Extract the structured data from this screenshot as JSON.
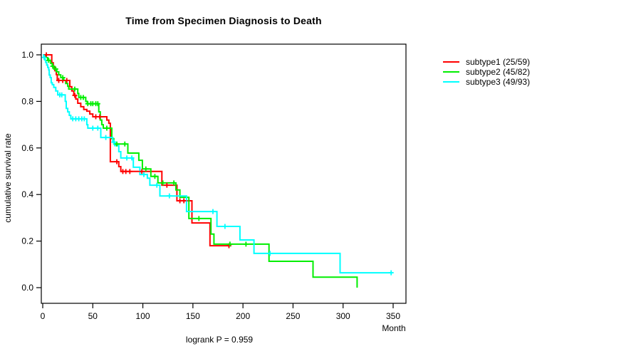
{
  "chart_data": {
    "type": "line",
    "variant": "kaplan-meier-step",
    "title": "Time from Specimen Diagnosis to Death",
    "xlabel": "Month",
    "ylabel": "cumulative survival rate",
    "annotation": "logrank P = 0.959",
    "xlim": [
      0,
      350
    ],
    "ylim": [
      0.0,
      1.0
    ],
    "x_ticks": [
      0,
      50,
      100,
      150,
      200,
      250,
      300,
      350
    ],
    "y_ticks": [
      0.0,
      0.2,
      0.4,
      0.6,
      0.8,
      1.0
    ],
    "grid": false,
    "legend_position": "right-outside",
    "axis_color": "#000000",
    "series": [
      {
        "name": "subtype1",
        "label": "subtype1 (25/59)",
        "events": 25,
        "n": 59,
        "color": "#ff0000",
        "steps": [
          [
            0,
            1.0
          ],
          [
            9,
            0.966
          ],
          [
            10.5,
            0.949
          ],
          [
            12,
            0.932
          ],
          [
            13.5,
            0.915
          ],
          [
            14.5,
            0.89
          ],
          [
            27,
            0.863
          ],
          [
            29,
            0.845
          ],
          [
            31,
            0.826
          ],
          [
            33,
            0.81
          ],
          [
            35,
            0.792
          ],
          [
            38,
            0.777
          ],
          [
            41,
            0.765
          ],
          [
            44,
            0.758
          ],
          [
            47,
            0.746
          ],
          [
            50,
            0.734
          ],
          [
            64,
            0.72
          ],
          [
            66,
            0.706
          ],
          [
            67.5,
            0.541
          ],
          [
            76,
            0.52
          ],
          [
            78,
            0.499
          ],
          [
            119,
            0.44
          ],
          [
            134,
            0.373
          ],
          [
            149,
            0.278
          ],
          [
            167,
            0.18
          ],
          [
            186,
            0.18
          ]
        ],
        "censors": [
          [
            3.6,
            1.0
          ],
          [
            16,
            0.89
          ],
          [
            20,
            0.89
          ],
          [
            24,
            0.89
          ],
          [
            32,
            0.826
          ],
          [
            53,
            0.734
          ],
          [
            57,
            0.734
          ],
          [
            74,
            0.541
          ],
          [
            80,
            0.499
          ],
          [
            83,
            0.499
          ],
          [
            87,
            0.499
          ],
          [
            99,
            0.499
          ],
          [
            124,
            0.44
          ],
          [
            137,
            0.373
          ],
          [
            141,
            0.373
          ],
          [
            186,
            0.18
          ]
        ]
      },
      {
        "name": "subtype2",
        "label": "subtype2 (45/82)",
        "events": 45,
        "n": 82,
        "color": "#00ee00",
        "steps": [
          [
            0,
            1.0
          ],
          [
            3,
            0.988
          ],
          [
            5,
            0.976
          ],
          [
            8,
            0.963
          ],
          [
            9.5,
            0.951
          ],
          [
            11,
            0.939
          ],
          [
            14,
            0.927
          ],
          [
            16,
            0.914
          ],
          [
            18,
            0.902
          ],
          [
            21,
            0.89
          ],
          [
            23,
            0.877
          ],
          [
            25,
            0.865
          ],
          [
            26,
            0.853
          ],
          [
            35,
            0.834
          ],
          [
            36,
            0.817
          ],
          [
            43,
            0.8
          ],
          [
            44.5,
            0.79
          ],
          [
            56,
            0.755
          ],
          [
            57.5,
            0.72
          ],
          [
            59,
            0.7
          ],
          [
            60.5,
            0.685
          ],
          [
            69,
            0.64
          ],
          [
            71,
            0.617
          ],
          [
            85,
            0.578
          ],
          [
            96,
            0.547
          ],
          [
            99.5,
            0.51
          ],
          [
            108,
            0.478
          ],
          [
            115,
            0.45
          ],
          [
            133,
            0.42
          ],
          [
            137,
            0.388
          ],
          [
            146,
            0.297
          ],
          [
            168,
            0.23
          ],
          [
            171,
            0.187
          ],
          [
            226,
            0.113
          ],
          [
            270,
            0.045
          ],
          [
            314,
            0.0
          ]
        ],
        "censors": [
          [
            6,
            0.976
          ],
          [
            10,
            0.951
          ],
          [
            13,
            0.939
          ],
          [
            20,
            0.902
          ],
          [
            32,
            0.853
          ],
          [
            38,
            0.817
          ],
          [
            40.5,
            0.817
          ],
          [
            45,
            0.79
          ],
          [
            48,
            0.79
          ],
          [
            50,
            0.79
          ],
          [
            53,
            0.79
          ],
          [
            55,
            0.79
          ],
          [
            64,
            0.685
          ],
          [
            74,
            0.617
          ],
          [
            82,
            0.617
          ],
          [
            103,
            0.51
          ],
          [
            112,
            0.478
          ],
          [
            120,
            0.45
          ],
          [
            131,
            0.45
          ],
          [
            156,
            0.297
          ],
          [
            187,
            0.187
          ],
          [
            203,
            0.187
          ]
        ]
      },
      {
        "name": "subtype3",
        "label": "subtype3 (49/93)",
        "events": 49,
        "n": 93,
        "color": "#00ffff",
        "steps": [
          [
            0,
            1.0
          ],
          [
            1,
            0.989
          ],
          [
            2,
            0.978
          ],
          [
            3,
            0.967
          ],
          [
            4,
            0.956
          ],
          [
            5,
            0.946
          ],
          [
            6,
            0.935
          ],
          [
            6.5,
            0.913
          ],
          [
            7.5,
            0.902
          ],
          [
            8.5,
            0.88
          ],
          [
            9.5,
            0.872
          ],
          [
            11,
            0.86
          ],
          [
            13,
            0.845
          ],
          [
            15,
            0.828
          ],
          [
            22.5,
            0.8
          ],
          [
            23.5,
            0.77
          ],
          [
            25,
            0.755
          ],
          [
            26.5,
            0.74
          ],
          [
            28,
            0.725
          ],
          [
            44,
            0.7
          ],
          [
            45,
            0.685
          ],
          [
            58,
            0.645
          ],
          [
            70,
            0.625
          ],
          [
            72,
            0.61
          ],
          [
            76,
            0.584
          ],
          [
            78,
            0.557
          ],
          [
            90.5,
            0.517
          ],
          [
            97,
            0.486
          ],
          [
            104.5,
            0.47
          ],
          [
            107,
            0.44
          ],
          [
            117,
            0.394
          ],
          [
            143.6,
            0.327
          ],
          [
            174,
            0.263
          ],
          [
            197,
            0.205
          ],
          [
            211,
            0.147
          ],
          [
            297,
            0.064
          ],
          [
            348,
            0.064
          ]
        ],
        "censors": [
          [
            1.4,
            0.989
          ],
          [
            17,
            0.828
          ],
          [
            19,
            0.828
          ],
          [
            30,
            0.725
          ],
          [
            33,
            0.725
          ],
          [
            36,
            0.725
          ],
          [
            39,
            0.725
          ],
          [
            41.5,
            0.725
          ],
          [
            50,
            0.685
          ],
          [
            55,
            0.685
          ],
          [
            63,
            0.645
          ],
          [
            71,
            0.625
          ],
          [
            84,
            0.557
          ],
          [
            89,
            0.557
          ],
          [
            101,
            0.486
          ],
          [
            114,
            0.44
          ],
          [
            126.5,
            0.394
          ],
          [
            170,
            0.327
          ],
          [
            182,
            0.263
          ],
          [
            227,
            0.147
          ],
          [
            348,
            0.064
          ]
        ]
      }
    ]
  }
}
